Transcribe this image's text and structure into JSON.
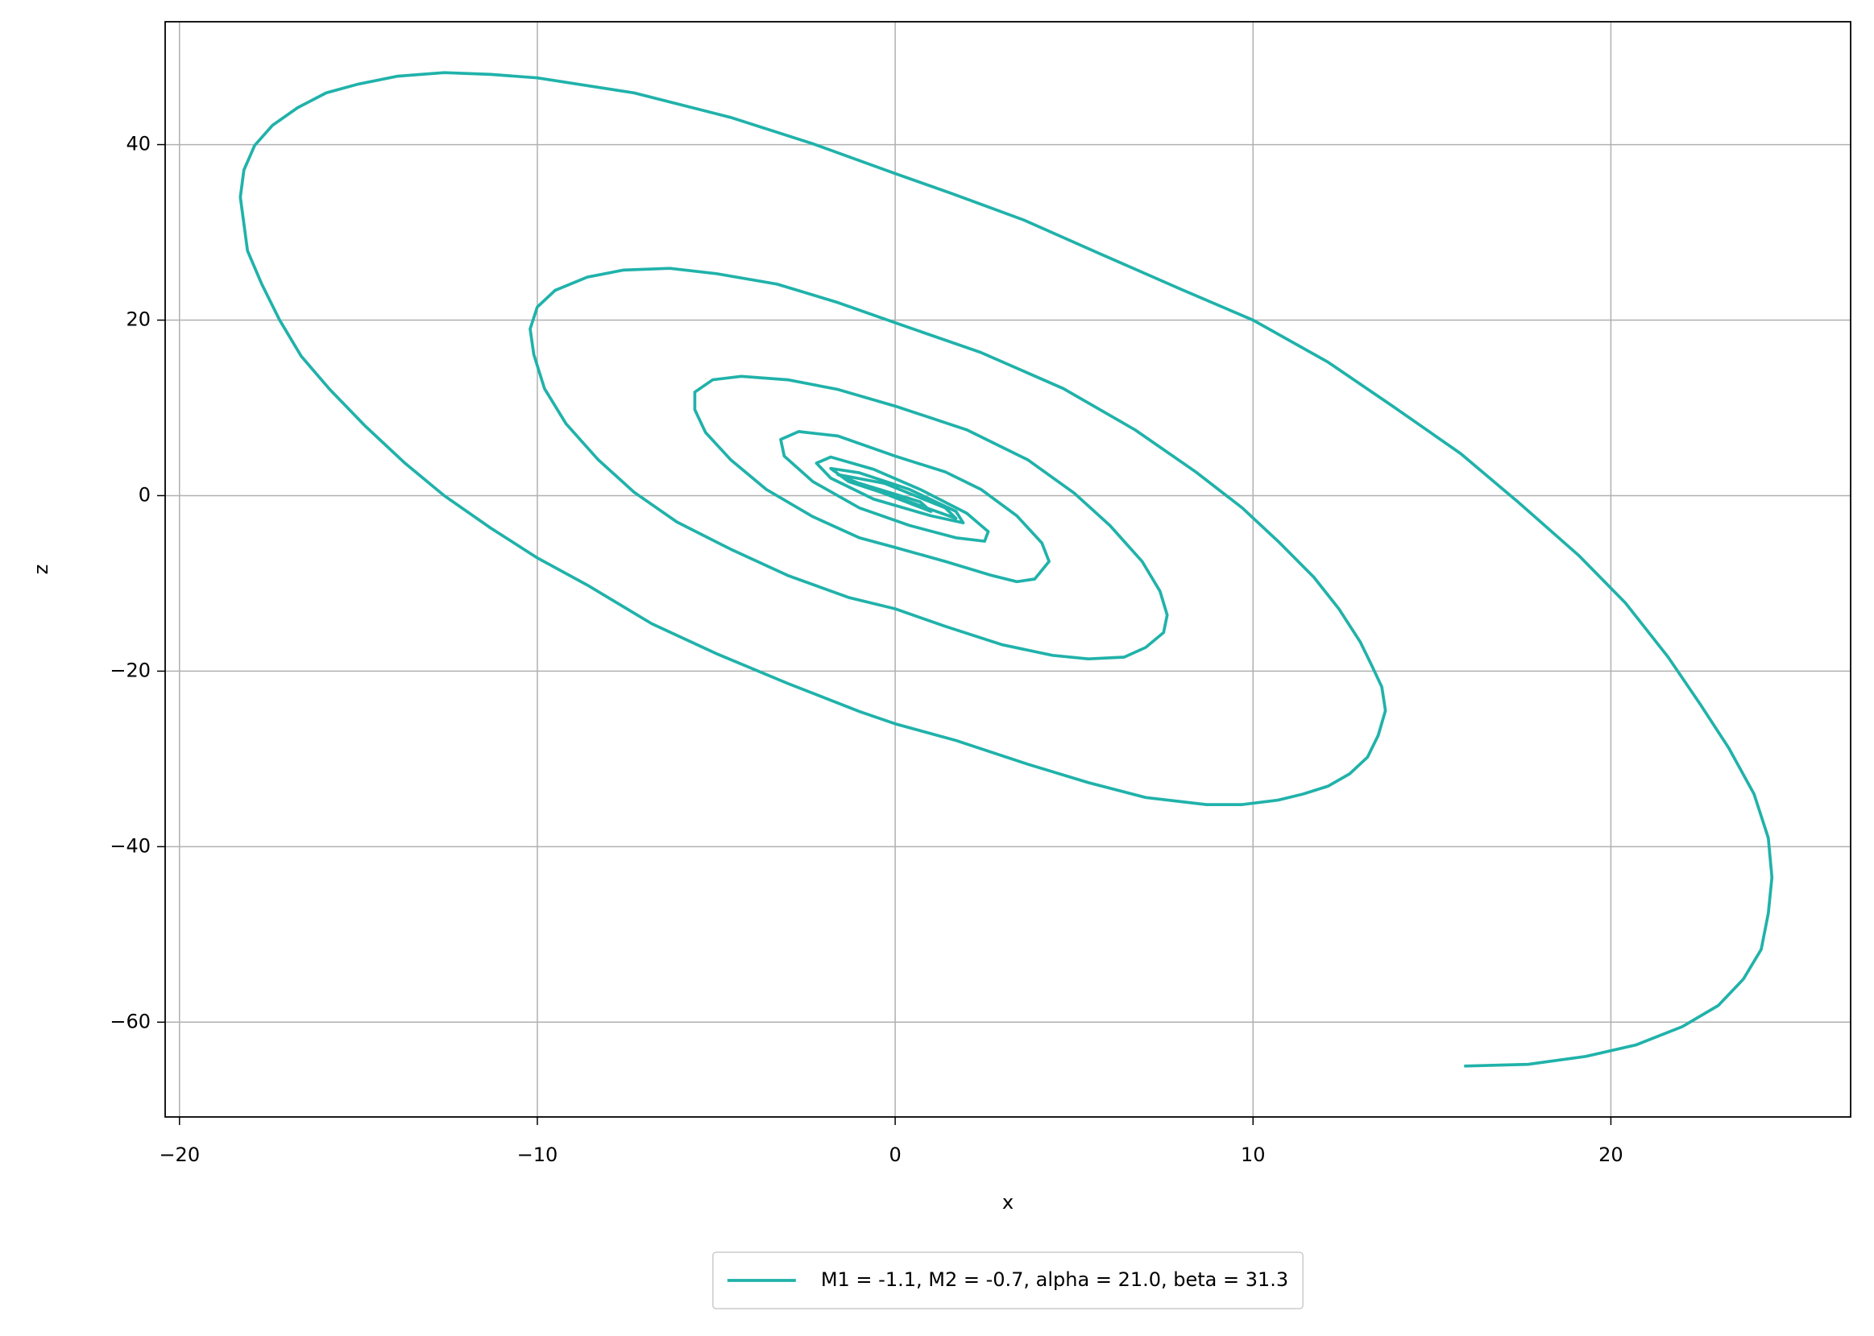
{
  "chart_data": {
    "type": "line",
    "x_label": "x",
    "y_label": "z",
    "xlim": [
      -20.4,
      26.7
    ],
    "ylim": [
      -70.8,
      54
    ],
    "xticks": [
      {
        "value": -20,
        "label": "−20"
      },
      {
        "value": -10,
        "label": "−10"
      },
      0,
      10,
      20
    ],
    "yticks": [
      {
        "value": -60,
        "label": "−60"
      },
      {
        "value": -40,
        "label": "−40"
      },
      {
        "value": -20,
        "label": "−20"
      },
      0,
      20,
      40
    ],
    "grid": true,
    "legend": "lower center",
    "x": [
      15.9,
      17.7,
      19.3,
      20.7,
      22.0,
      23.0,
      23.7,
      24.2,
      24.4,
      24.5,
      24.4,
      24.0,
      23.3,
      22.5,
      21.6,
      20.4,
      19.1,
      17.4,
      15.8,
      13.9,
      12.1,
      10.0,
      8.0,
      5.7,
      3.6,
      1.6,
      0,
      -2.3,
      -4.6,
      -7.3,
      -10.0,
      -11.3,
      -12.6,
      -13.9,
      -15.0,
      -15.9,
      -16.7,
      -17.4,
      -17.9,
      -18.2,
      -18.3,
      -18.2,
      -18.1,
      -17.7,
      -17.2,
      -16.6,
      -15.8,
      -14.8,
      -13.7,
      -12.6,
      -11.3,
      -10.0,
      -8.6,
      -6.8,
      -5.0,
      -3.0,
      -1.0,
      0,
      1.7,
      3.7,
      5.4,
      7.0,
      8.7,
      9.7,
      10.7,
      11.4,
      12.1,
      12.7,
      13.2,
      13.5,
      13.7,
      13.6,
      13.3,
      13.0,
      12.4,
      11.7,
      10.7,
      9.7,
      8.4,
      6.7,
      4.7,
      2.4,
      0,
      -1.6,
      -3.3,
      -5.0,
      -6.3,
      -7.6,
      -8.6,
      -9.5,
      -10.0,
      -10.2,
      -10.1,
      -9.8,
      -9.2,
      -8.3,
      -7.3,
      -6.1,
      -4.6,
      -3.0,
      -1.3,
      0,
      1.4,
      3.0,
      4.4,
      5.4,
      6.4,
      7.0,
      7.5,
      7.6,
      7.4,
      6.9,
      6.0,
      5.0,
      3.7,
      2.0,
      0,
      -1.6,
      -3.0,
      -4.3,
      -5.1,
      -5.6,
      -5.6,
      -5.3,
      -4.6,
      -3.6,
      -2.3,
      -1.0,
      0,
      1.4,
      2.7,
      3.4,
      3.9,
      4.3,
      4.1,
      3.4,
      2.4,
      1.4,
      0,
      -1.6,
      -2.7,
      -3.2,
      -3.1,
      -2.3,
      -1.0,
      0.4,
      1.7,
      2.5,
      2.6,
      2.0,
      0.7,
      -0.6,
      -1.8,
      -2.2,
      -1.8,
      -0.6,
      1.0,
      1.9,
      1.7,
      0.4,
      -1.0,
      -1.8,
      -1.3,
      0.4,
      1.7,
      1.4,
      -0.3,
      -1.6,
      -0.6,
      1.0,
      0.7,
      -1.0,
      0
    ],
    "series": [
      {
        "name": "M1 = -1.1, M2 = -0.7, alpha = 21.0, beta = 31.3",
        "color": "#20b2aa",
        "values": [
          -65.0,
          -64.8,
          -63.9,
          -62.6,
          -60.5,
          -58.1,
          -55.1,
          -51.7,
          -47.6,
          -43.5,
          -39.0,
          -34.0,
          -28.8,
          -23.8,
          -18.4,
          -12.2,
          -6.8,
          -0.7,
          4.8,
          10.2,
          15.2,
          20.0,
          23.5,
          27.6,
          31.4,
          34.4,
          36.7,
          40.1,
          43.1,
          45.9,
          47.6,
          48.0,
          48.2,
          47.8,
          46.9,
          45.9,
          44.2,
          42.2,
          39.9,
          37.1,
          34.0,
          31.0,
          27.9,
          24.1,
          20.0,
          15.9,
          12.1,
          7.9,
          3.7,
          0,
          -3.7,
          -7.1,
          -10.2,
          -14.6,
          -18.0,
          -21.4,
          -24.6,
          -26.0,
          -27.9,
          -30.6,
          -32.7,
          -34.4,
          -35.2,
          -35.2,
          -34.7,
          -34.0,
          -33.1,
          -31.7,
          -29.8,
          -27.3,
          -24.5,
          -21.8,
          -19.2,
          -16.7,
          -12.9,
          -9.3,
          -5.2,
          -1.4,
          2.7,
          7.5,
          12.2,
          16.3,
          19.7,
          22.0,
          24.1,
          25.3,
          25.9,
          25.7,
          24.9,
          23.4,
          21.5,
          19.0,
          16.1,
          12.2,
          8.2,
          4.1,
          0.4,
          -3.0,
          -6.1,
          -9.1,
          -11.6,
          -12.9,
          -14.9,
          -17.0,
          -18.2,
          -18.6,
          -18.4,
          -17.3,
          -15.6,
          -13.6,
          -10.9,
          -7.5,
          -3.4,
          0.3,
          4.1,
          7.5,
          10.2,
          12.1,
          13.2,
          13.6,
          13.2,
          11.8,
          9.8,
          7.2,
          4.1,
          0.7,
          -2.4,
          -4.8,
          -5.9,
          -7.5,
          -9.1,
          -9.8,
          -9.5,
          -7.5,
          -5.4,
          -2.3,
          0.7,
          2.7,
          4.5,
          6.8,
          7.3,
          6.4,
          4.5,
          1.6,
          -1.4,
          -3.4,
          -4.8,
          -5.2,
          -4.1,
          -2.0,
          0.7,
          3.0,
          4.4,
          3.7,
          2.0,
          -0.4,
          -2.3,
          -3.1,
          -1.8,
          0.7,
          2.6,
          3.1,
          1.6,
          -0.7,
          -2.6,
          -1.4,
          1.4,
          2.4,
          0.7,
          -1.8,
          -0.7,
          1.4,
          0
        ]
      }
    ]
  }
}
